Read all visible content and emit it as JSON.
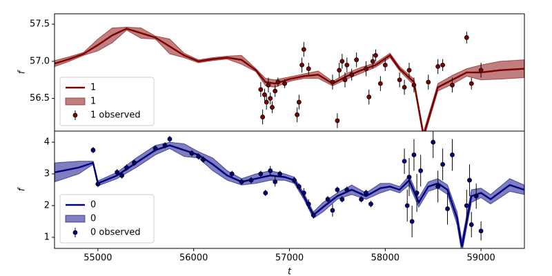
{
  "chart_data": [
    {
      "type": "line",
      "ylabel": "f",
      "ylim": [
        56.06,
        57.64
      ],
      "yticks": [
        56.5,
        {
          "value": 57,
          "label": "57.0"
        },
        57.5
      ],
      "xlim": [
        54547,
        59453
      ],
      "legend": "lower left",
      "series": [
        {
          "type": "line",
          "name": "1",
          "color": "#800000",
          "x": [
            54550,
            54700,
            54850,
            55000,
            55150,
            55300,
            55450,
            55600,
            55750,
            55900,
            56050,
            56200,
            56350,
            56500,
            56650,
            56750,
            56850,
            57000,
            57150,
            57300,
            57450,
            57600,
            57750,
            57900,
            58050,
            58150,
            58300,
            58400,
            58550,
            58700,
            58850,
            59000,
            59200,
            59450
          ],
          "values": [
            56.97,
            57.03,
            57.1,
            57.22,
            57.35,
            57.44,
            57.38,
            57.32,
            57.2,
            57.08,
            57.0,
            57.03,
            57.05,
            57.02,
            56.88,
            56.72,
            56.7,
            56.76,
            56.8,
            56.82,
            56.7,
            56.8,
            56.88,
            56.95,
            57.08,
            56.9,
            56.72,
            56.0,
            56.65,
            56.75,
            56.85,
            56.85,
            56.88,
            56.9
          ]
        },
        {
          "type": "band",
          "name": "1",
          "color": "#800000",
          "x": [
            54550,
            54700,
            54850,
            55000,
            55150,
            55300,
            55450,
            55600,
            55750,
            55900,
            56050,
            56200,
            56350,
            56500,
            56650,
            56750,
            56850,
            57000,
            57150,
            57300,
            57450,
            57600,
            57750,
            57900,
            58050,
            58150,
            58300,
            58400,
            58550,
            58700,
            58850,
            59000,
            59200,
            59450
          ],
          "lower": [
            56.93,
            57.0,
            57.08,
            57.14,
            57.25,
            57.42,
            57.31,
            57.3,
            57.1,
            57.05,
            56.98,
            57.01,
            57.03,
            56.96,
            56.86,
            56.67,
            56.65,
            56.73,
            56.77,
            56.77,
            56.67,
            56.76,
            56.84,
            56.92,
            57.05,
            56.87,
            56.68,
            55.95,
            56.6,
            56.69,
            56.8,
            56.75,
            56.76,
            56.78
          ],
          "upper": [
            57.01,
            57.06,
            57.12,
            57.3,
            57.45,
            57.46,
            57.45,
            57.34,
            57.3,
            57.11,
            57.02,
            57.05,
            57.07,
            57.08,
            56.9,
            56.77,
            56.75,
            56.79,
            56.83,
            56.87,
            56.73,
            56.84,
            56.92,
            56.98,
            57.11,
            56.93,
            56.76,
            56.05,
            56.7,
            56.81,
            56.9,
            56.95,
            57.0,
            57.02
          ]
        },
        {
          "type": "errorbar",
          "name": "1 observed",
          "color": "#800000",
          "x": [
            56700,
            56720,
            56740,
            56760,
            56780,
            56800,
            56820,
            56850,
            56880,
            56950,
            57080,
            57100,
            57130,
            57150,
            57200,
            57450,
            57500,
            57520,
            57550,
            57580,
            57600,
            57650,
            57700,
            57800,
            57830,
            57870,
            57900,
            57950,
            58000,
            58150,
            58200,
            58250,
            58300,
            58450,
            58550,
            58600,
            58700,
            58850,
            58900,
            59000
          ],
          "values": [
            56.62,
            56.25,
            56.55,
            56.45,
            56.68,
            56.5,
            56.38,
            56.6,
            56.72,
            56.7,
            56.28,
            56.45,
            56.95,
            57.16,
            56.9,
            56.72,
            56.2,
            56.88,
            57.0,
            56.75,
            56.95,
            56.82,
            57.02,
            56.9,
            56.52,
            57.0,
            57.08,
            56.7,
            56.95,
            56.75,
            56.65,
            56.88,
            56.68,
            56.72,
            56.93,
            56.95,
            56.68,
            57.32,
            56.7,
            56.88
          ],
          "errors": [
            0.1,
            0.1,
            0.08,
            0.1,
            0.1,
            0.08,
            0.08,
            0.08,
            0.06,
            0.06,
            0.1,
            0.1,
            0.1,
            0.1,
            0.08,
            0.1,
            0.1,
            0.1,
            0.1,
            0.1,
            0.1,
            0.08,
            0.1,
            0.1,
            0.1,
            0.1,
            0.08,
            0.1,
            0.08,
            0.1,
            0.1,
            0.1,
            0.1,
            0.1,
            0.1,
            0.08,
            0.1,
            0.08,
            0.08,
            0.1
          ]
        }
      ]
    },
    {
      "type": "line",
      "ylabel": "f",
      "xlabel": "t",
      "ylim": [
        0.65,
        4.35
      ],
      "yticks": [
        1,
        2,
        3,
        4
      ],
      "xlim": [
        54547,
        59453
      ],
      "xticks": [
        55000,
        56000,
        57000,
        58000,
        59000
      ],
      "legend": "lower left",
      "series": [
        {
          "type": "line",
          "name": "0",
          "color": "#000080",
          "x": [
            54550,
            54800,
            54950,
            55000,
            55200,
            55400,
            55600,
            55750,
            55900,
            56050,
            56200,
            56350,
            56500,
            56650,
            56800,
            56950,
            57050,
            57150,
            57250,
            57350,
            57500,
            57650,
            57800,
            57950,
            58050,
            58150,
            58250,
            58350,
            58450,
            58550,
            58650,
            58750,
            58800,
            58900,
            59000,
            59100,
            59300,
            59450
          ],
          "values": [
            3.05,
            3.2,
            3.35,
            2.7,
            2.95,
            3.35,
            3.75,
            3.9,
            3.75,
            3.6,
            3.3,
            2.95,
            2.75,
            2.85,
            2.95,
            2.9,
            2.8,
            2.3,
            1.7,
            1.95,
            2.3,
            2.5,
            2.3,
            2.55,
            2.6,
            2.5,
            2.8,
            2.1,
            2.6,
            2.7,
            2.5,
            1.6,
            0.7,
            2.3,
            2.4,
            2.2,
            2.65,
            2.5
          ]
        },
        {
          "type": "band",
          "name": "0",
          "color": "#000080",
          "x": [
            54550,
            54800,
            54950,
            55000,
            55200,
            55400,
            55600,
            55750,
            55900,
            56050,
            56200,
            56350,
            56500,
            56650,
            56800,
            56950,
            57050,
            57150,
            57250,
            57350,
            57500,
            57650,
            57800,
            57950,
            58050,
            58150,
            58250,
            58350,
            58450,
            58550,
            58650,
            58750,
            58800,
            58900,
            59000,
            59100,
            59300,
            59450
          ],
          "lower": [
            2.75,
            3.0,
            3.3,
            2.62,
            2.85,
            3.2,
            3.6,
            3.8,
            3.55,
            3.5,
            3.1,
            2.8,
            2.65,
            2.7,
            2.8,
            2.8,
            2.7,
            2.2,
            1.6,
            1.8,
            2.2,
            2.35,
            2.2,
            2.4,
            2.5,
            2.4,
            2.65,
            1.95,
            2.45,
            2.55,
            2.35,
            1.4,
            0.5,
            2.1,
            2.25,
            2.05,
            2.45,
            2.35
          ],
          "upper": [
            3.35,
            3.4,
            3.4,
            2.78,
            3.05,
            3.5,
            3.9,
            4.0,
            3.95,
            3.7,
            3.5,
            3.1,
            2.85,
            3.0,
            3.1,
            3.0,
            2.9,
            2.4,
            1.8,
            2.1,
            2.4,
            2.65,
            2.4,
            2.7,
            2.7,
            2.6,
            2.95,
            2.25,
            2.75,
            2.85,
            2.65,
            1.8,
            0.9,
            2.5,
            2.55,
            2.35,
            2.85,
            2.65
          ]
        },
        {
          "type": "errorbar",
          "name": "0 observed",
          "color": "#000080",
          "x": [
            54950,
            55000,
            55200,
            55250,
            55300,
            55380,
            55600,
            55700,
            55750,
            55980,
            56050,
            56100,
            56400,
            56500,
            56600,
            56700,
            56750,
            56800,
            56850,
            56900,
            57050,
            57100,
            57150,
            57200,
            57250,
            57400,
            57450,
            57500,
            57550,
            57600,
            57750,
            57800,
            57850,
            58200,
            58230,
            58250,
            58280,
            58300,
            58330,
            58370,
            58500,
            58550,
            58600,
            58650,
            58700,
            58850,
            58880,
            58900,
            58950,
            59000
          ],
          "values": [
            3.75,
            2.68,
            3.05,
            2.95,
            3.2,
            3.35,
            3.8,
            3.9,
            4.1,
            3.65,
            3.55,
            3.45,
            3.0,
            2.75,
            2.8,
            3.0,
            2.4,
            3.1,
            2.75,
            3.0,
            2.8,
            2.6,
            2.4,
            2.05,
            1.7,
            2.2,
            1.85,
            2.5,
            2.2,
            2.5,
            2.2,
            2.4,
            2.05,
            3.4,
            2.0,
            2.9,
            1.5,
            3.6,
            2.4,
            3.1,
            4.0,
            2.6,
            3.3,
            1.9,
            3.6,
            2.0,
            2.8,
            1.4,
            2.3,
            1.2
          ],
          "errors": [
            0.1,
            0.1,
            0.1,
            0.1,
            0.1,
            0.1,
            0.1,
            0.1,
            0.1,
            0.1,
            0.1,
            0.1,
            0.1,
            0.1,
            0.1,
            0.1,
            0.1,
            0.15,
            0.15,
            0.1,
            0.1,
            0.1,
            0.15,
            0.15,
            0.1,
            0.1,
            0.2,
            0.1,
            0.1,
            0.1,
            0.1,
            0.1,
            0.1,
            0.4,
            0.5,
            0.6,
            0.5,
            0.5,
            0.6,
            0.5,
            0.5,
            0.5,
            0.5,
            0.5,
            0.5,
            0.5,
            0.5,
            0.4,
            0.4,
            0.3
          ]
        }
      ]
    }
  ]
}
